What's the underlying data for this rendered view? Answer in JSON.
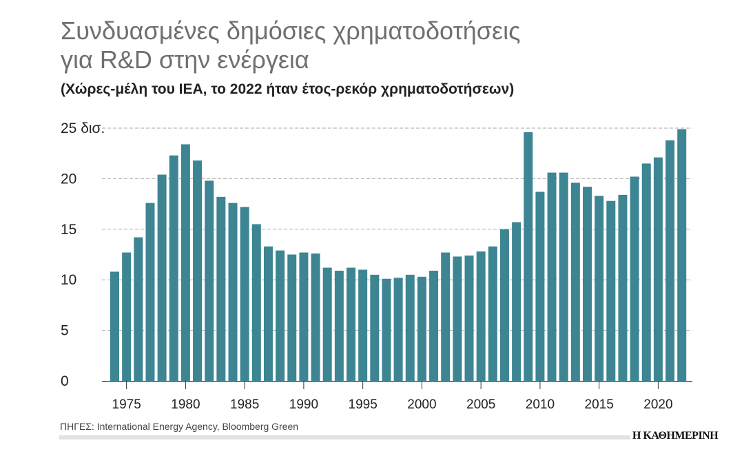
{
  "title_line1": "Συνδυασμένες δημόσιες χρηματοδοτήσεις",
  "title_line2": "για R&D στην ενέργεια",
  "subtitle": "(Χώρες-μέλη του IEA, το 2022 ήταν έτος-ρεκόρ χρηματοδοτήσεων)",
  "source": "ΠΗΓΕΣ: International Energy Agency, Bloomberg Green",
  "logo": "Η ΚΑΘΗΜΕΡΙΝΗ",
  "colors": {
    "bar": "#3d8593",
    "grid": "#aaaaaa",
    "title": "#6f6f6f"
  },
  "chart_data": {
    "type": "bar",
    "ylim": [
      0,
      25
    ],
    "yticks": [
      0,
      5,
      10,
      15,
      20,
      25
    ],
    "ytick_labels": [
      "0",
      "5",
      "10",
      "15",
      "20",
      "25 δισ."
    ],
    "xtick_labels": [
      "1975",
      "1980",
      "1985",
      "1990",
      "1995",
      "2000",
      "2005",
      "2010",
      "2015",
      "2020"
    ],
    "grid": "horizontal dashed",
    "categories": [
      1974,
      1975,
      1976,
      1977,
      1978,
      1979,
      1980,
      1981,
      1982,
      1983,
      1984,
      1985,
      1986,
      1987,
      1988,
      1989,
      1990,
      1991,
      1992,
      1993,
      1994,
      1995,
      1996,
      1997,
      1998,
      1999,
      2000,
      2001,
      2002,
      2003,
      2004,
      2005,
      2006,
      2007,
      2008,
      2009,
      2010,
      2011,
      2012,
      2013,
      2014,
      2015,
      2016,
      2017,
      2018,
      2019,
      2020,
      2021,
      2022
    ],
    "values": [
      10.8,
      12.7,
      14.2,
      17.6,
      20.4,
      22.3,
      23.4,
      21.8,
      19.8,
      18.2,
      17.6,
      17.2,
      15.5,
      13.3,
      12.9,
      12.5,
      12.7,
      12.6,
      11.2,
      10.9,
      11.2,
      11.0,
      10.5,
      10.1,
      10.2,
      10.5,
      10.3,
      10.9,
      12.7,
      12.3,
      12.4,
      12.8,
      13.3,
      15.0,
      15.7,
      24.6,
      18.7,
      20.6,
      20.6,
      19.6,
      19.2,
      18.3,
      17.8,
      18.4,
      20.2,
      21.5,
      22.1,
      23.8,
      24.9
    ]
  }
}
